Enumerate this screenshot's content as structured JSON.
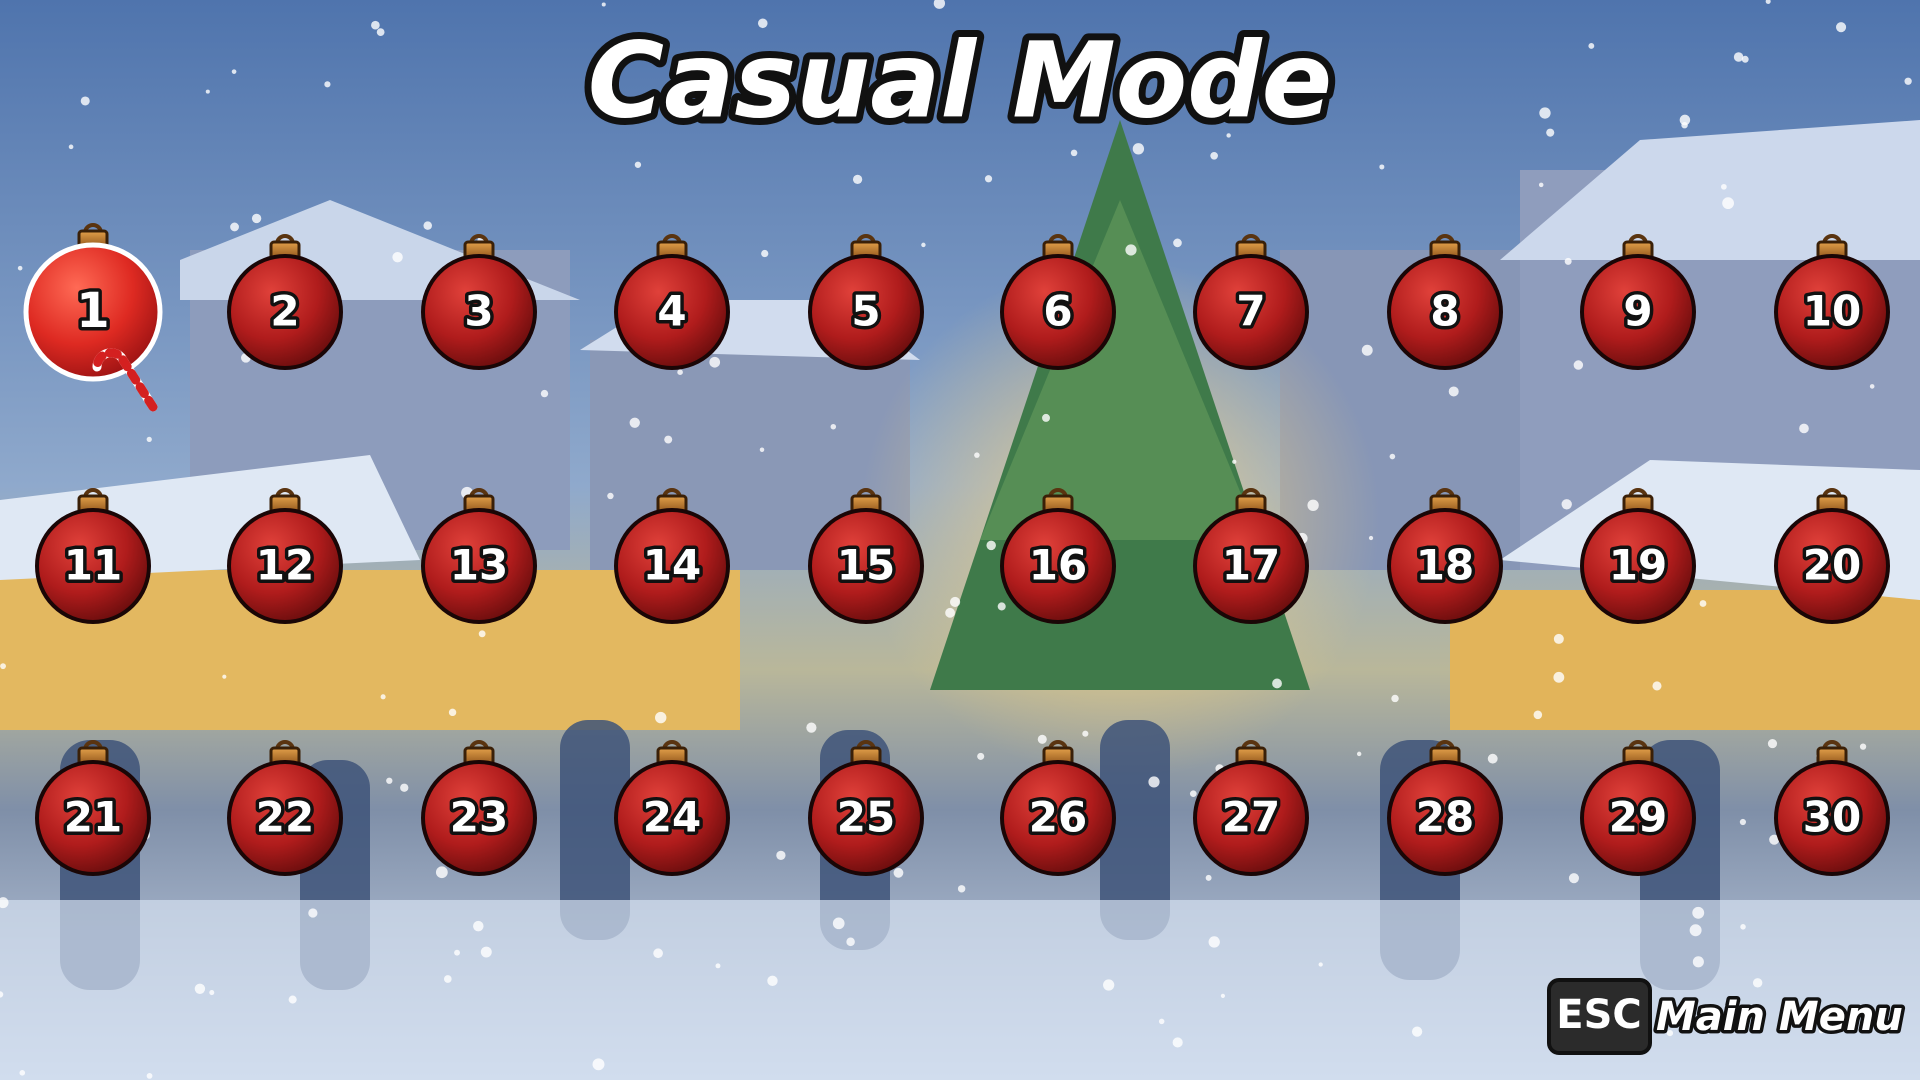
{
  "title": "Casual Mode",
  "levels": [
    "1",
    "2",
    "3",
    "4",
    "5",
    "6",
    "7",
    "8",
    "9",
    "10",
    "11",
    "12",
    "13",
    "14",
    "15",
    "16",
    "17",
    "18",
    "19",
    "20",
    "21",
    "22",
    "23",
    "24",
    "25",
    "26",
    "27",
    "28",
    "29",
    "30"
  ],
  "hint": {
    "key": "ESC",
    "label": "Main Menu"
  }
}
